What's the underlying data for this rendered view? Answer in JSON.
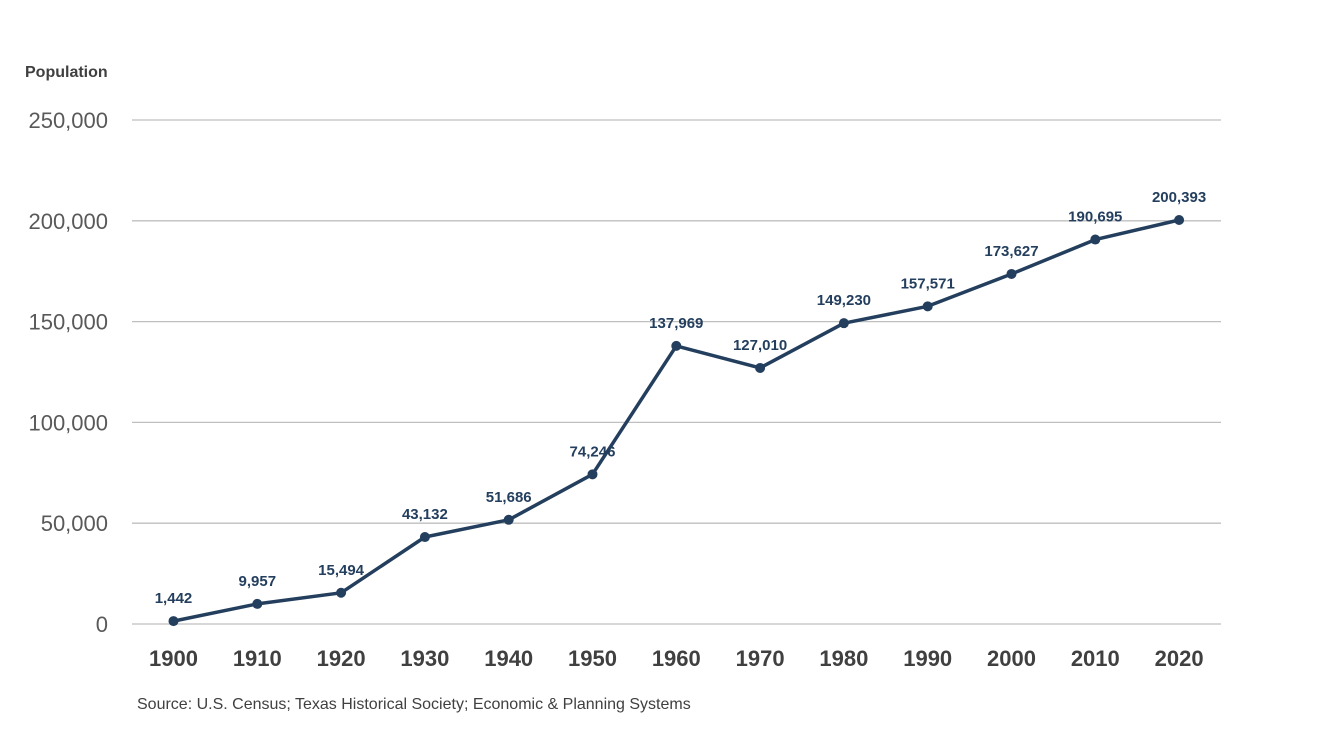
{
  "chart_data": {
    "type": "line",
    "title": "",
    "ylabel": "Population",
    "xlabel": "",
    "categories": [
      "1900",
      "1910",
      "1920",
      "1930",
      "1940",
      "1950",
      "1960",
      "1970",
      "1980",
      "1990",
      "2000",
      "2010",
      "2020"
    ],
    "series": [
      {
        "values": [
          1442,
          9957,
          15494,
          43132,
          51686,
          74246,
          137969,
          127010,
          149230,
          157571,
          173627,
          190695,
          200393
        ],
        "labels": [
          "1,442",
          "9,957",
          "15,494",
          "43,132",
          "51,686",
          "74,246",
          "137,969",
          "127,010",
          "149,230",
          "157,571",
          "173,627",
          "190,695",
          "200,393"
        ],
        "color": "#243f5e"
      }
    ],
    "ylim": [
      0,
      250000
    ],
    "yticks": [
      0,
      50000,
      100000,
      150000,
      200000,
      250000
    ],
    "ytick_labels": [
      "0",
      "50,000",
      "100,000",
      "150,000",
      "200,000",
      "250,000"
    ],
    "grid": true,
    "gridline_color": "#bfbfbf",
    "source": "Source: U.S. Census; Texas Historical Society;  Economic & Planning Systems"
  }
}
